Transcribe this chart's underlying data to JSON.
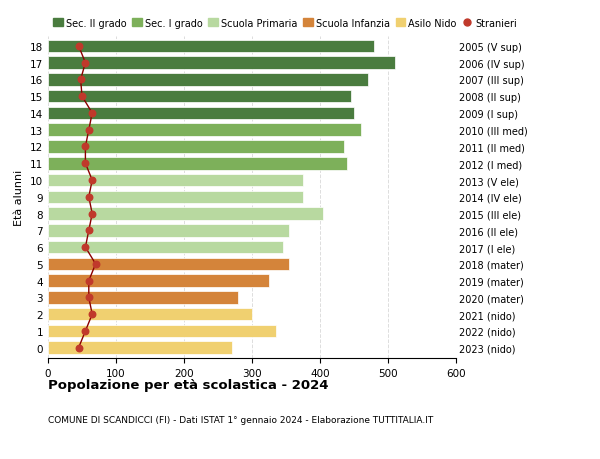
{
  "ages": [
    18,
    17,
    16,
    15,
    14,
    13,
    12,
    11,
    10,
    9,
    8,
    7,
    6,
    5,
    4,
    3,
    2,
    1,
    0
  ],
  "right_labels": [
    "2005 (V sup)",
    "2006 (IV sup)",
    "2007 (III sup)",
    "2008 (II sup)",
    "2009 (I sup)",
    "2010 (III med)",
    "2011 (II med)",
    "2012 (I med)",
    "2013 (V ele)",
    "2014 (IV ele)",
    "2015 (III ele)",
    "2016 (II ele)",
    "2017 (I ele)",
    "2018 (mater)",
    "2019 (mater)",
    "2020 (mater)",
    "2021 (nido)",
    "2022 (nido)",
    "2023 (nido)"
  ],
  "bar_values": [
    480,
    510,
    470,
    445,
    450,
    460,
    435,
    440,
    375,
    375,
    405,
    355,
    345,
    355,
    325,
    280,
    300,
    335,
    270
  ],
  "bar_colors": [
    "#4a7c3f",
    "#4a7c3f",
    "#4a7c3f",
    "#4a7c3f",
    "#4a7c3f",
    "#7db05a",
    "#7db05a",
    "#7db05a",
    "#b8d9a0",
    "#b8d9a0",
    "#b8d9a0",
    "#b8d9a0",
    "#b8d9a0",
    "#d4843a",
    "#d4843a",
    "#d4843a",
    "#f0d070",
    "#f0d070",
    "#f0d070"
  ],
  "stranieri_values": [
    45,
    55,
    48,
    50,
    65,
    60,
    55,
    55,
    65,
    60,
    65,
    60,
    55,
    70,
    60,
    60,
    65,
    55,
    45
  ],
  "legend_labels": [
    "Sec. II grado",
    "Sec. I grado",
    "Scuola Primaria",
    "Scuola Infanzia",
    "Asilo Nido",
    "Stranieri"
  ],
  "legend_colors": [
    "#4a7c3f",
    "#7db05a",
    "#b8d9a0",
    "#d4843a",
    "#f0d070",
    "#c0392b"
  ],
  "title": "Popolazione per età scolastica - 2024",
  "subtitle": "COMUNE DI SCANDICCI (FI) - Dati ISTAT 1° gennaio 2024 - Elaborazione TUTTITALIA.IT",
  "ylabel_left": "Età alunni",
  "xlim": [
    0,
    600
  ],
  "xticks": [
    0,
    100,
    200,
    300,
    400,
    500,
    600
  ],
  "grid_color": "#dddddd",
  "bar_height": 0.75,
  "stranieri_color": "#c0392b",
  "stranieri_line_color": "#8b0000",
  "background_color": "#ffffff"
}
